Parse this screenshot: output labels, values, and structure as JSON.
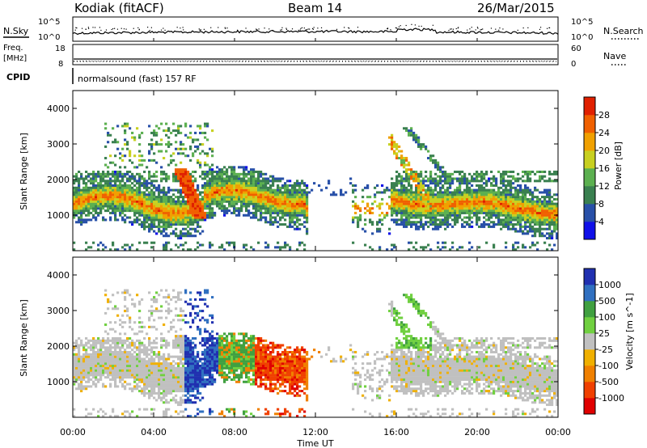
{
  "header": {
    "station": "Kodiak (fitACF)",
    "beam": "Beam 14",
    "date": "26/Mar/2015"
  },
  "status_panel": {
    "nsky_label": "N.Sky",
    "nsearch_label": "N.Search",
    "freq_label_1": "Freq.",
    "freq_label_2": "[MHz]",
    "nave_label": "Nave",
    "cpid_label": "CPID",
    "cpid_text": "normalsound (fast) 157 RF",
    "noise_tick_top": "10^5",
    "noise_tick_bottom": "10^0",
    "freq_ticks": [
      "18",
      "8"
    ],
    "nave_ticks": [
      "60",
      "0"
    ]
  },
  "colors": {
    "power_scale": [
      "#1010e8",
      "#2850a8",
      "#3a8050",
      "#5cb050",
      "#c8d020",
      "#f0a000",
      "#f06000",
      "#e02000",
      "#d00000"
    ],
    "velocity_scale": [
      "#2030b0",
      "#3070c0",
      "#40a040",
      "#70d040",
      "#c0c0c0",
      "#f0b000",
      "#f08000",
      "#f04000",
      "#e00000"
    ]
  },
  "chart_data": [
    {
      "type": "heatmap",
      "panel": "power",
      "ylabel": "Slant Range [km]",
      "yticks": [
        "1000",
        "2000",
        "3000",
        "4000"
      ],
      "ylim": [
        0,
        4500
      ],
      "xlim": [
        0,
        24
      ],
      "colorbar_label": "Power [dB]",
      "colorbar_ticks": [
        "4",
        "8",
        "12",
        "16",
        "20",
        "24",
        "28"
      ],
      "colorbar_range": [
        0,
        32
      ]
    },
    {
      "type": "heatmap",
      "panel": "velocity",
      "ylabel": "Slant Range [km]",
      "yticks": [
        "1000",
        "2000",
        "3000",
        "4000"
      ],
      "ylim": [
        0,
        4500
      ],
      "xlim": [
        0,
        24
      ],
      "colorbar_label": "Velocity [m s^-1]",
      "colorbar_ticks": [
        "1000",
        "500",
        "100",
        "25",
        "-25",
        "-100",
        "-500",
        "-1000"
      ]
    }
  ],
  "xaxis": {
    "ticks": [
      "00:00",
      "04:00",
      "08:00",
      "12:00",
      "16:00",
      "20:00",
      "00:00"
    ],
    "label": "Time UT"
  }
}
